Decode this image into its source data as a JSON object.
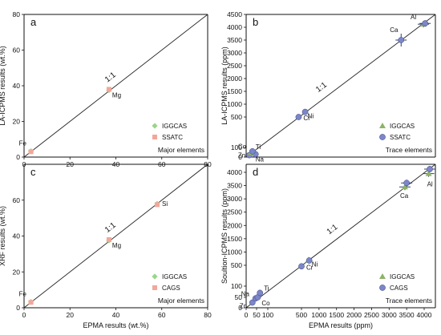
{
  "colors": {
    "iggcas_major": "#9bd58a",
    "ssatc_major": "#f2a79b",
    "cags_major": "#f2a79b",
    "iggcas_trace": "#8db368",
    "ssatc_trace": "#7c86c9",
    "cags_trace": "#7c86c9",
    "error_bar": "#1b2c57"
  },
  "chart_data": [
    {
      "id": "a",
      "type": "scatter",
      "panel_letter": "a",
      "xlabel": "",
      "ylabel": "LA-ICPMS results (wt.%)",
      "xlim": [
        0,
        80
      ],
      "ylim": [
        0,
        80
      ],
      "xticks": [
        "0",
        "20",
        "40",
        "60",
        "80"
      ],
      "yticks": [
        "0",
        "20",
        "40",
        "60",
        "80"
      ],
      "ratio_label": "1:1",
      "caption": "Major elements",
      "legend": [
        {
          "name": "IGGCAS",
          "marker": "diamond",
          "color": "#9bd58a"
        },
        {
          "name": "SSATC",
          "marker": "square",
          "color": "#f2a79b"
        }
      ],
      "points": [
        {
          "element": "Fe",
          "x": 3,
          "y": 3.3,
          "series": "IGGCAS"
        },
        {
          "element": "Fe",
          "x": 3,
          "y": 3.0,
          "series": "SSATC"
        },
        {
          "element": "Mg",
          "x": 37,
          "y": 37.5,
          "series": "IGGCAS"
        },
        {
          "element": "Mg",
          "x": 37,
          "y": 38.0,
          "series": "SSATC"
        }
      ]
    },
    {
      "id": "b",
      "type": "scatter",
      "panel_letter": "b",
      "xlabel": "",
      "ylabel": "LA-ICPMS results (ppm)",
      "xlim": [
        0,
        4500
      ],
      "ylim": [
        0,
        4500
      ],
      "xticks": [],
      "yticks": [
        "0",
        "100",
        "500",
        "1000",
        "1500",
        "2000",
        "2500",
        "3000",
        "3500",
        "4000",
        "4500"
      ],
      "ratio_label": "1:1",
      "caption": "Trace elements",
      "legend": [
        {
          "name": "IGGCAS",
          "marker": "triangle",
          "color": "#8db368"
        },
        {
          "name": "SSATC",
          "marker": "circle",
          "color": "#7c86c9"
        }
      ],
      "points": [
        {
          "element": "Zn",
          "x": 30,
          "y": 20,
          "series": "SSATC"
        },
        {
          "element": "Na",
          "x": 90,
          "y": 30,
          "series": "SSATC"
        },
        {
          "element": "Co",
          "x": 45,
          "y": 45,
          "series": "IGGCAS"
        },
        {
          "element": "Ti",
          "x": 60,
          "y": 60,
          "series": "SSATC"
        },
        {
          "element": "Cr",
          "x": 510,
          "y": 500,
          "series": "SSATC"
        },
        {
          "element": "Ni",
          "x": 700,
          "y": 700,
          "series": "SSATC"
        },
        {
          "element": "Ca",
          "x": 3500,
          "y": 3500,
          "series": "SSATC"
        },
        {
          "element": "Al",
          "x": 4150,
          "y": 4120,
          "series": "IGGCAS"
        },
        {
          "element": "Al",
          "x": 4200,
          "y": 4150,
          "series": "SSATC"
        }
      ]
    },
    {
      "id": "c",
      "type": "scatter",
      "panel_letter": "c",
      "xlabel": "EPMA results (wt.%)",
      "ylabel": "XRF results (wt.%)",
      "xlim": [
        0,
        80
      ],
      "ylim": [
        0,
        80
      ],
      "xticks": [
        "0",
        "20",
        "40",
        "60",
        "80"
      ],
      "yticks": [
        "0",
        "20",
        "40",
        "60"
      ],
      "ratio_label": "1:1",
      "caption": "Major elements",
      "legend": [
        {
          "name": "IGGCAS",
          "marker": "diamond",
          "color": "#9bd58a"
        },
        {
          "name": "CAGS",
          "marker": "square",
          "color": "#f2a79b"
        }
      ],
      "points": [
        {
          "element": "Fe",
          "x": 3,
          "y": 3.3,
          "series": "IGGCAS"
        },
        {
          "element": "Fe",
          "x": 3,
          "y": 3.0,
          "series": "CAGS"
        },
        {
          "element": "Mg",
          "x": 37,
          "y": 37.5,
          "series": "IGGCAS"
        },
        {
          "element": "Mg",
          "x": 37,
          "y": 38.0,
          "series": "CAGS"
        },
        {
          "element": "Si",
          "x": 58,
          "y": 58,
          "series": "IGGCAS"
        },
        {
          "element": "Si",
          "x": 58,
          "y": 57.5,
          "series": "CAGS"
        }
      ]
    },
    {
      "id": "d",
      "type": "scatter",
      "panel_letter": "d",
      "xlabel": "EPMA results (ppm)",
      "ylabel": "Soultion-ICPMS results (ppm)",
      "xlim": [
        0,
        4500
      ],
      "ylim": [
        0,
        4500
      ],
      "xticks": [
        "0",
        "50",
        "100",
        "500",
        "1000",
        "1500",
        "2000",
        "2500",
        "3000",
        "3500",
        "4000"
      ],
      "yticks": [
        "0",
        "50",
        "100",
        "500",
        "1000",
        "1500",
        "2000",
        "2500",
        "3000",
        "3500",
        "4000"
      ],
      "ratio_label": "1:1",
      "caption": "Trace elements",
      "legend": [
        {
          "name": "IGGCAS",
          "marker": "triangle",
          "color": "#8db368"
        },
        {
          "name": "CAGS",
          "marker": "circle",
          "color": "#7c86c9"
        }
      ],
      "points": [
        {
          "element": "Zn",
          "x": 30,
          "y": 25,
          "series": "CAGS"
        },
        {
          "element": "Na",
          "x": 45,
          "y": 45,
          "series": "CAGS"
        },
        {
          "element": "Co",
          "x": 55,
          "y": 50,
          "series": "CAGS"
        },
        {
          "element": "Ti",
          "x": 65,
          "y": 70,
          "series": "CAGS"
        },
        {
          "element": "Cr",
          "x": 500,
          "y": 480,
          "series": "CAGS"
        },
        {
          "element": "Ni",
          "x": 700,
          "y": 700,
          "series": "IGGCAS"
        },
        {
          "element": "Ni",
          "x": 720,
          "y": 680,
          "series": "CAGS"
        },
        {
          "element": "Ca",
          "x": 3450,
          "y": 3450,
          "series": "IGGCAS"
        },
        {
          "element": "Ca",
          "x": 3500,
          "y": 3600,
          "series": "CAGS"
        },
        {
          "element": "Al",
          "x": 4200,
          "y": 3950,
          "series": "IGGCAS"
        },
        {
          "element": "Al",
          "x": 4250,
          "y": 4200,
          "series": "CAGS"
        }
      ]
    }
  ]
}
